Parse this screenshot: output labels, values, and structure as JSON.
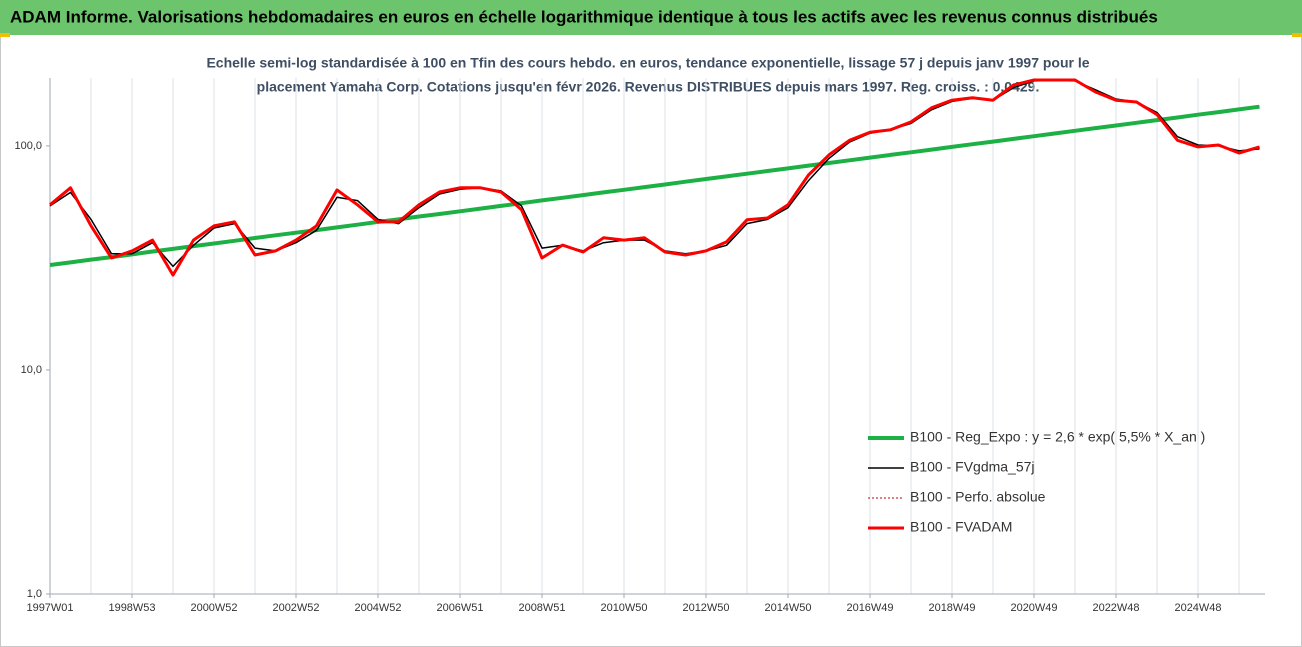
{
  "chart_data": {
    "type": "line",
    "title": "ADAM Informe. Valorisations hebdomadaires en euros en échelle logarithmique identique à tous les actifs avec les revenus connus distribués",
    "subtitle": [
      "Echelle semi-log standardisée à 100 en Tfin des cours hebdo. en euros, tendance exponentielle, lissage 57 j depuis janv 1997 pour le",
      "placement Yamaha Corp. Cotations jusqu'en févr 2026.  Revenus DISTRIBUES depuis mars 1997. Reg. croiss. : 0,0429."
    ],
    "categories": [
      "1997W01",
      null,
      null,
      null,
      "1998W53",
      null,
      null,
      null,
      "2000W52",
      null,
      null,
      null,
      "2002W52",
      null,
      null,
      null,
      "2004W52",
      null,
      null,
      null,
      "2006W51",
      null,
      null,
      null,
      "2008W51",
      null,
      null,
      null,
      "2010W50",
      null,
      null,
      null,
      "2012W50",
      null,
      null,
      null,
      "2014W50",
      null,
      null,
      null,
      "2016W49",
      null,
      null,
      null,
      "2018W49",
      null,
      null,
      null,
      "2020W49",
      null,
      null,
      null,
      "2022W48",
      null,
      null,
      null,
      "2024W48",
      null,
      null,
      null
    ],
    "log_scale": true,
    "ylim": [
      1,
      201
    ],
    "yticks": [
      {
        "value": 1,
        "label": "1,0"
      },
      {
        "value": 10,
        "label": "10,0"
      },
      {
        "value": 100,
        "label": "100,0"
      }
    ],
    "grid": true,
    "legend": "lower right",
    "series": [
      {
        "name": "B100 - Reg_Expo : y = 2,6 * exp( 5,5% *  X_an )",
        "color": "#1db044",
        "width": 4,
        "dash": "none",
        "values": [
          29.4,
          30.2,
          31.1,
          31.9,
          32.8,
          33.8,
          34.7,
          35.7,
          36.7,
          37.7,
          38.8,
          39.9,
          41.0,
          42.1,
          43.3,
          44.5,
          45.8,
          47.0,
          48.4,
          49.7,
          51.1,
          52.5,
          54.0,
          55.5,
          57.1,
          58.7,
          60.3,
          62.0,
          63.7,
          65.5,
          67.3,
          69.2,
          71.2,
          73.1,
          75.2,
          77.3,
          79.4,
          81.7,
          83.9,
          86.3,
          88.7,
          91.2,
          93.7,
          96.3,
          99.0,
          101.8,
          104.6,
          107.5,
          110.5,
          113.6,
          116.8,
          120.1,
          123.4,
          126.8,
          130.4,
          134.0,
          137.8,
          141.6,
          145.6,
          149.6
        ]
      },
      {
        "name": "B100 - FVgdma_57j",
        "color": "#000000",
        "width": 1.5,
        "dash": "none",
        "values": [
          54,
          62,
          47,
          33,
          33,
          37,
          29,
          36,
          43,
          45,
          35,
          34,
          37,
          42,
          59,
          57,
          47,
          45,
          53,
          61,
          64,
          65,
          63,
          54,
          35,
          36,
          34,
          37,
          38,
          38,
          34,
          33,
          34,
          36,
          45,
          47,
          53,
          70,
          88,
          104,
          114,
          118,
          126,
          145,
          158,
          163,
          160,
          182,
          195,
          196,
          195,
          178,
          162,
          157,
          141,
          110,
          101,
          100,
          95,
          97
        ]
      },
      {
        "name": "B100 - Perfo. absolue",
        "color": "#c00000",
        "width": 1,
        "dash": "2,2",
        "values": [
          54.6,
          65,
          44,
          31.6,
          34,
          38,
          26.5,
          38,
          44,
          45.8,
          32.6,
          34,
          38,
          44,
          63.6,
          54.6,
          45.8,
          45.8,
          54.6,
          62.3,
          65,
          65,
          62.3,
          51.9,
          31.6,
          36.1,
          33.6,
          38.9,
          38,
          38.9,
          33.6,
          32.6,
          34,
          37.3,
          46.8,
          47.7,
          54.6,
          74.2,
          91.2,
          106,
          115,
          118,
          128,
          148,
          160,
          164,
          160,
          187,
          197,
          197,
          197,
          174,
          160,
          157,
          138,
          106,
          99,
          101,
          93,
          99
        ]
      },
      {
        "name": "B100 - FVADAM",
        "color": "#ff0000",
        "width": 3,
        "dash": "none",
        "values": [
          54.6,
          65,
          44,
          31.6,
          34,
          38,
          26.5,
          38,
          44,
          45.8,
          32.6,
          34,
          38,
          44,
          63.6,
          54.6,
          45.8,
          45.8,
          54.6,
          62.3,
          65,
          65,
          62.3,
          51.9,
          31.6,
          36.1,
          33.6,
          38.9,
          38,
          38.9,
          33.6,
          32.6,
          34,
          37.3,
          46.8,
          47.7,
          54.6,
          74.2,
          91.2,
          106,
          115,
          118,
          128,
          148,
          160,
          164,
          160,
          187,
          197,
          197,
          197,
          174,
          160,
          157,
          138,
          106,
          99,
          101,
          93,
          99
        ]
      }
    ]
  }
}
